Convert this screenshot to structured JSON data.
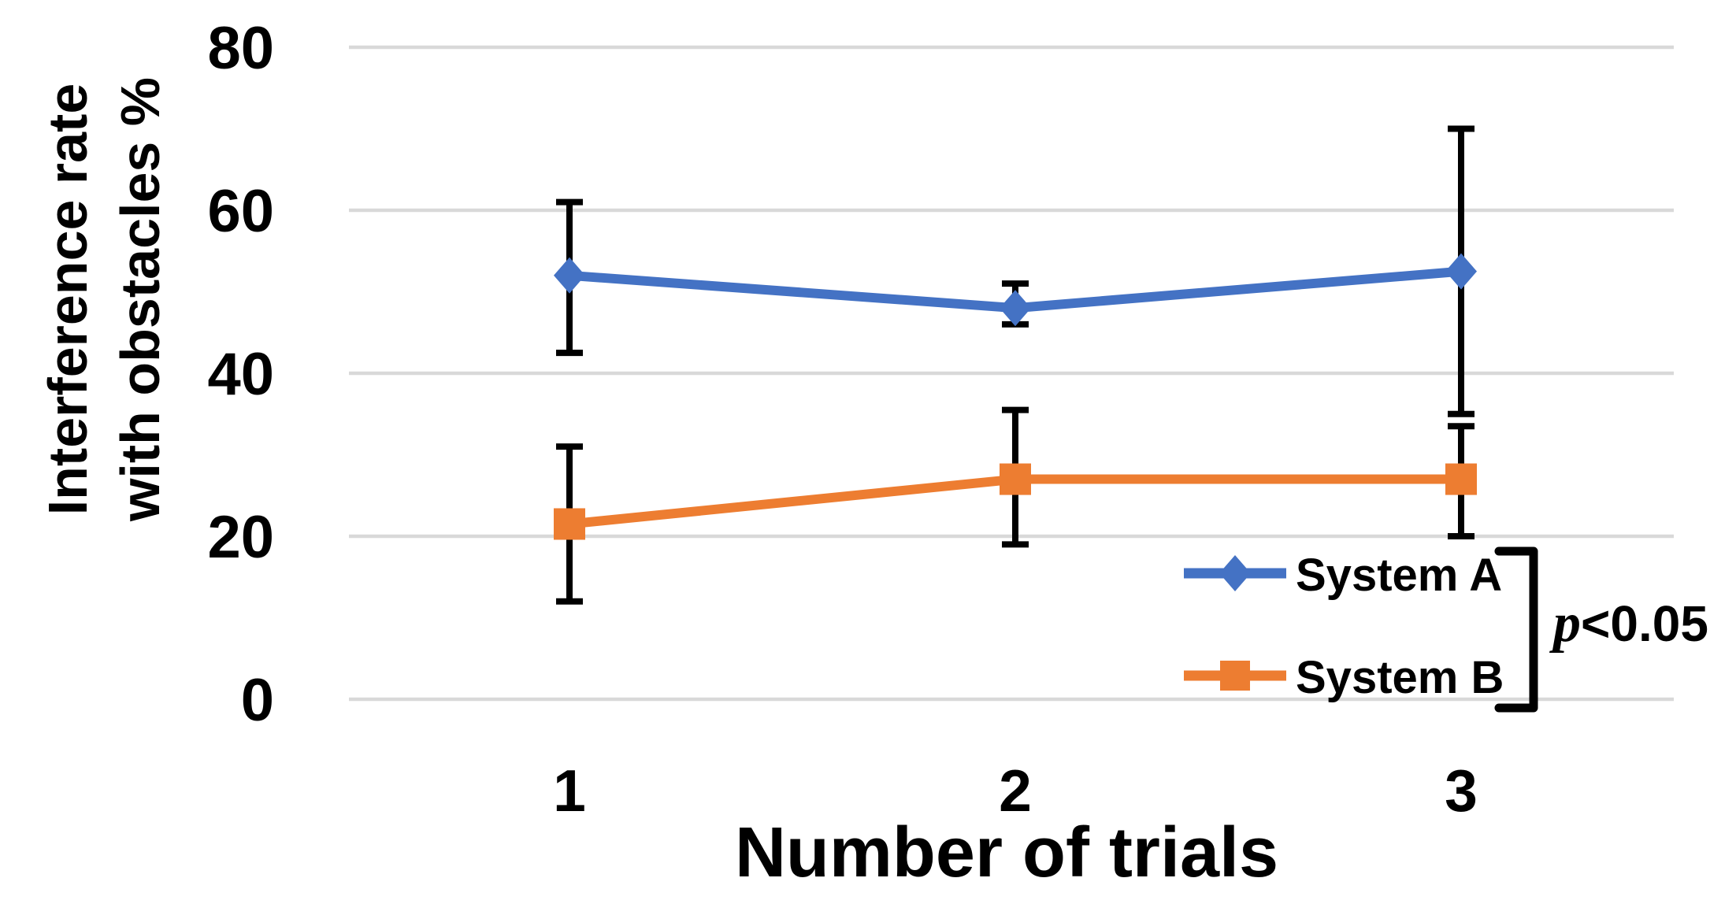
{
  "chart_data": {
    "type": "line",
    "title": "",
    "xlabel": "Number of trials",
    "ylabel": "Interference rate with obstacles %",
    "ylabel_lines": [
      "Interference rate",
      "with obstacles %"
    ],
    "x": [
      1,
      2,
      3
    ],
    "xtick_labels": [
      "1",
      "2",
      "3"
    ],
    "yticks": [
      0,
      20,
      40,
      60,
      80
    ],
    "ylim": [
      0,
      80
    ],
    "grid": true,
    "gridline_color": "#D9D9D9",
    "error_bar_color": "#000000",
    "legend_position": "inside-bottom-right",
    "series": [
      {
        "name": "System A",
        "marker": "diamond",
        "color": "#4472C4",
        "values": [
          52,
          48,
          52.5
        ],
        "error_upper": [
          61,
          51,
          70
        ],
        "error_lower": [
          42.5,
          46,
          35
        ]
      },
      {
        "name": "System B",
        "marker": "square",
        "color": "#ED7D31",
        "values": [
          21.5,
          27,
          27
        ],
        "error_upper": [
          31,
          35.5,
          33.5
        ],
        "error_lower": [
          12,
          19,
          20
        ]
      }
    ],
    "annotation": {
      "italic": "p",
      "text": "<0.05",
      "bracket": true
    }
  }
}
